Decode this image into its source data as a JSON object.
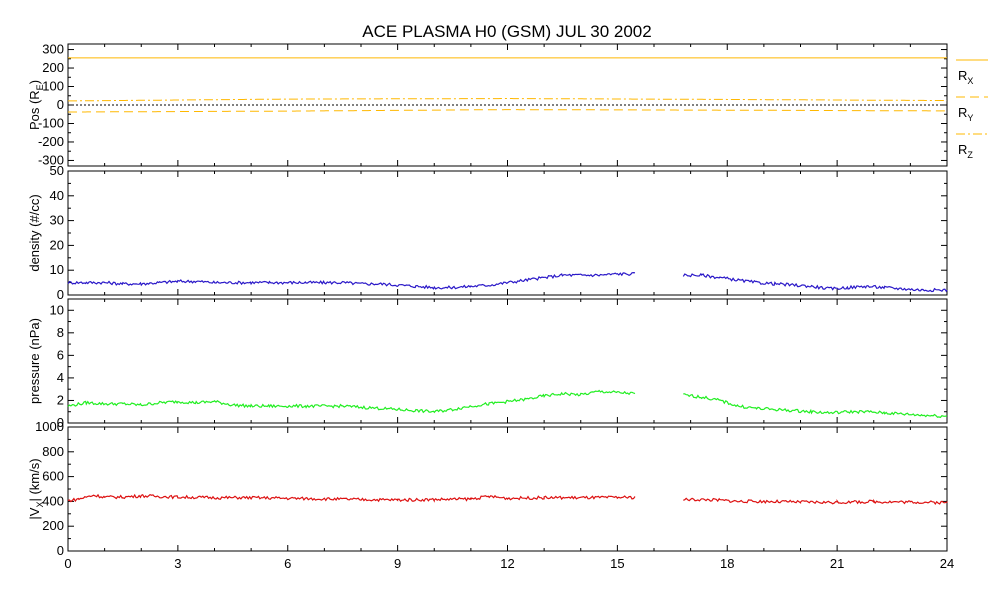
{
  "chart_data": {
    "title": "ACE PLASMA H0 (GSM)   JUL 30 2002",
    "type": "line",
    "x_ticks": [
      "0",
      "3",
      "6",
      "9",
      "12",
      "15",
      "18",
      "21",
      "24"
    ],
    "xlim": [
      0,
      24
    ],
    "data_gap": [
      15.5,
      16.8
    ],
    "panels": [
      {
        "id": "pos",
        "ylabel": "Pos (R",
        "ylabel_sub": "E",
        "ylabel_end": ")",
        "ylim": [
          -330,
          330
        ],
        "yticks": [
          300,
          200,
          100,
          0,
          -100,
          -200,
          -300
        ],
        "zero_line": true,
        "series": [
          {
            "name": "X",
            "color": "#ffb800",
            "dash": "",
            "x": [
              0,
              24
            ],
            "values": [
              255,
              255
            ]
          },
          {
            "name": "Y",
            "color": "#ffb800",
            "dash": "9,5",
            "x": [
              0,
              6,
              12,
              18,
              24
            ],
            "values": [
              -38,
              -33,
              -25,
              -28,
              -32
            ]
          },
          {
            "name": "Z",
            "color": "#ffb800",
            "dash": "9,3,2,3",
            "x": [
              0,
              6,
              12,
              18,
              24
            ],
            "values": [
              22,
              32,
              35,
              30,
              24
            ]
          }
        ],
        "legend": [
          {
            "label": "R",
            "sub": "X"
          },
          {
            "label": "R",
            "sub": "Y"
          },
          {
            "label": "R",
            "sub": "Z"
          }
        ]
      },
      {
        "id": "density",
        "ylabel": "density (#/cc)",
        "ylim": [
          0,
          50
        ],
        "yticks": [
          50,
          40,
          30,
          20,
          10,
          0
        ],
        "series": [
          {
            "name": "",
            "color": "#2a18c8",
            "x": [
              0,
              0.5,
              1,
              1.5,
              2,
              2.5,
              3,
              3.5,
              4,
              4.5,
              5,
              5.5,
              6,
              6.5,
              7,
              7.5,
              8,
              8.5,
              9,
              9.5,
              10,
              10.5,
              11,
              11.5,
              12,
              12.5,
              13,
              13.5,
              14,
              14.5,
              15,
              15.5,
              16.8,
              17.3,
              17.8,
              18.3,
              18.8,
              19.3,
              19.8,
              20.3,
              20.8,
              21.3,
              21.8,
              22.3,
              22.8,
              23.3,
              24
            ],
            "values": [
              5,
              5,
              5,
              4.5,
              4.5,
              5,
              5.5,
              5.5,
              5,
              5,
              5,
              5,
              5,
              5,
              5,
              5,
              4.5,
              4.5,
              4,
              3.5,
              3,
              3,
              3.5,
              4,
              5,
              6,
              7,
              8,
              8,
              8,
              8.5,
              8.5,
              8,
              8,
              7,
              6,
              5,
              4.5,
              4,
              3.5,
              2.5,
              3,
              3.5,
              3,
              2.5,
              2,
              2
            ]
          }
        ]
      },
      {
        "id": "pressure",
        "ylabel": "pressure (nPa)",
        "ylim": [
          0,
          11
        ],
        "yticks": [
          10,
          8,
          6,
          4,
          2,
          0
        ],
        "series": [
          {
            "name": "",
            "color": "#22ee22",
            "x": [
              0,
              0.5,
              1,
              1.5,
              2,
              2.5,
              3,
              3.5,
              4,
              4.5,
              5,
              5.5,
              6,
              6.5,
              7,
              7.5,
              8,
              8.5,
              9,
              9.5,
              10,
              10.5,
              11,
              11.5,
              12,
              12.5,
              13,
              13.5,
              14,
              14.5,
              15,
              15.5,
              16.8,
              17.3,
              17.8,
              18.3,
              18.8,
              19.3,
              19.8,
              20.3,
              20.8,
              21.3,
              21.8,
              22.3,
              22.8,
              23.3,
              24
            ],
            "values": [
              1.5,
              1.8,
              1.7,
              1.7,
              1.6,
              1.8,
              1.9,
              1.8,
              1.9,
              1.6,
              1.5,
              1.5,
              1.5,
              1.5,
              1.5,
              1.5,
              1.4,
              1.3,
              1.2,
              1.1,
              1.0,
              1.2,
              1.5,
              1.7,
              1.9,
              2.1,
              2.4,
              2.6,
              2.5,
              2.8,
              2.7,
              2.6,
              2.5,
              2.3,
              2.0,
              1.5,
              1.3,
              1.2,
              1.1,
              1.0,
              0.9,
              1.0,
              1.0,
              0.9,
              0.8,
              0.7,
              0.6
            ]
          }
        ]
      },
      {
        "id": "vx",
        "ylabel": "|V",
        "ylabel_sub": "X",
        "ylabel_end": "| (km/s)",
        "ylim": [
          0,
          1000
        ],
        "yticks": [
          1000,
          800,
          600,
          400,
          200,
          0
        ],
        "series": [
          {
            "name": "",
            "color": "#dd1111",
            "x": [
              0,
              0.3,
              0.7,
              1,
              1.5,
              2,
              2.5,
              3,
              4,
              5,
              6,
              7,
              8,
              9,
              10,
              11,
              11.5,
              12,
              13,
              14,
              15,
              15.5,
              16.8,
              17.3,
              17.8,
              18.3,
              19,
              20,
              21,
              22,
              23,
              24
            ],
            "values": [
              405,
              420,
              450,
              435,
              435,
              445,
              440,
              435,
              430,
              430,
              425,
              420,
              415,
              412,
              415,
              420,
              440,
              425,
              430,
              430,
              432,
              432,
              415,
              415,
              410,
              400,
              400,
              395,
              392,
              398,
              395,
              390
            ]
          }
        ]
      }
    ]
  }
}
